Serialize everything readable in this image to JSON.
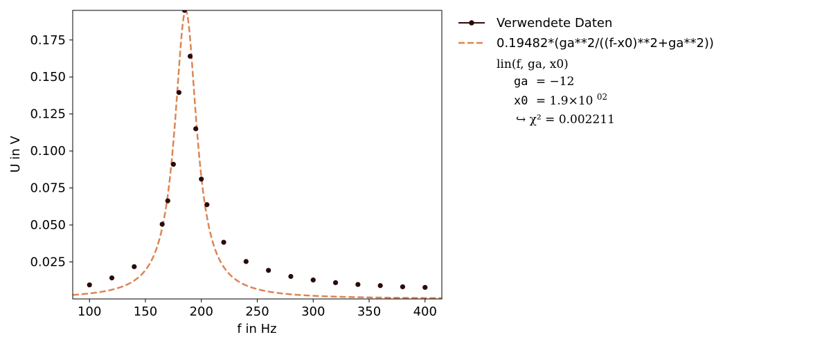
{
  "chart_data": {
    "type": "scatter",
    "xlabel": "f in Hz",
    "ylabel": "U in V",
    "xlim": [
      85,
      415
    ],
    "ylim": [
      0.0,
      0.195
    ],
    "xticks": [
      100,
      150,
      200,
      250,
      300,
      350,
      400
    ],
    "yticks": [
      0.025,
      0.05,
      0.075,
      0.1,
      0.125,
      0.15,
      0.175
    ],
    "ytick_labels": [
      "0.025",
      "0.050",
      "0.075",
      "0.100",
      "0.125",
      "0.150",
      "0.175"
    ],
    "grid": false,
    "legend_position": "outside-right",
    "series": [
      {
        "name": "Verwendete Daten",
        "kind": "points",
        "color": "#2b0a0a",
        "x": [
          100,
          120,
          140,
          165,
          170,
          175,
          180,
          185,
          190,
          195,
          200,
          205,
          220,
          240,
          260,
          280,
          300,
          320,
          340,
          360,
          380,
          400
        ],
        "y": [
          0.0095,
          0.0142,
          0.0218,
          0.0505,
          0.0663,
          0.091,
          0.1395,
          0.195,
          0.164,
          0.115,
          0.081,
          0.0637,
          0.0383,
          0.0253,
          0.0193,
          0.0152,
          0.0128,
          0.011,
          0.0098,
          0.009,
          0.0082,
          0.0078
        ]
      },
      {
        "name": "0.19482*(ga**2/((f-x0)**2+ga**2))",
        "kind": "fit-curve",
        "color": "#dd8452",
        "amplitude": 0.19482,
        "ga": 12,
        "x0": 186
      }
    ],
    "fit_annotation": {
      "header": "lin(f, ga, x0)",
      "params": [
        {
          "name": "ga",
          "value": "= −12"
        },
        {
          "name": "x0",
          "value": "= 1.9×10",
          "exp": "02"
        }
      ],
      "chi2": "↪ χ² = 0.002211"
    }
  }
}
